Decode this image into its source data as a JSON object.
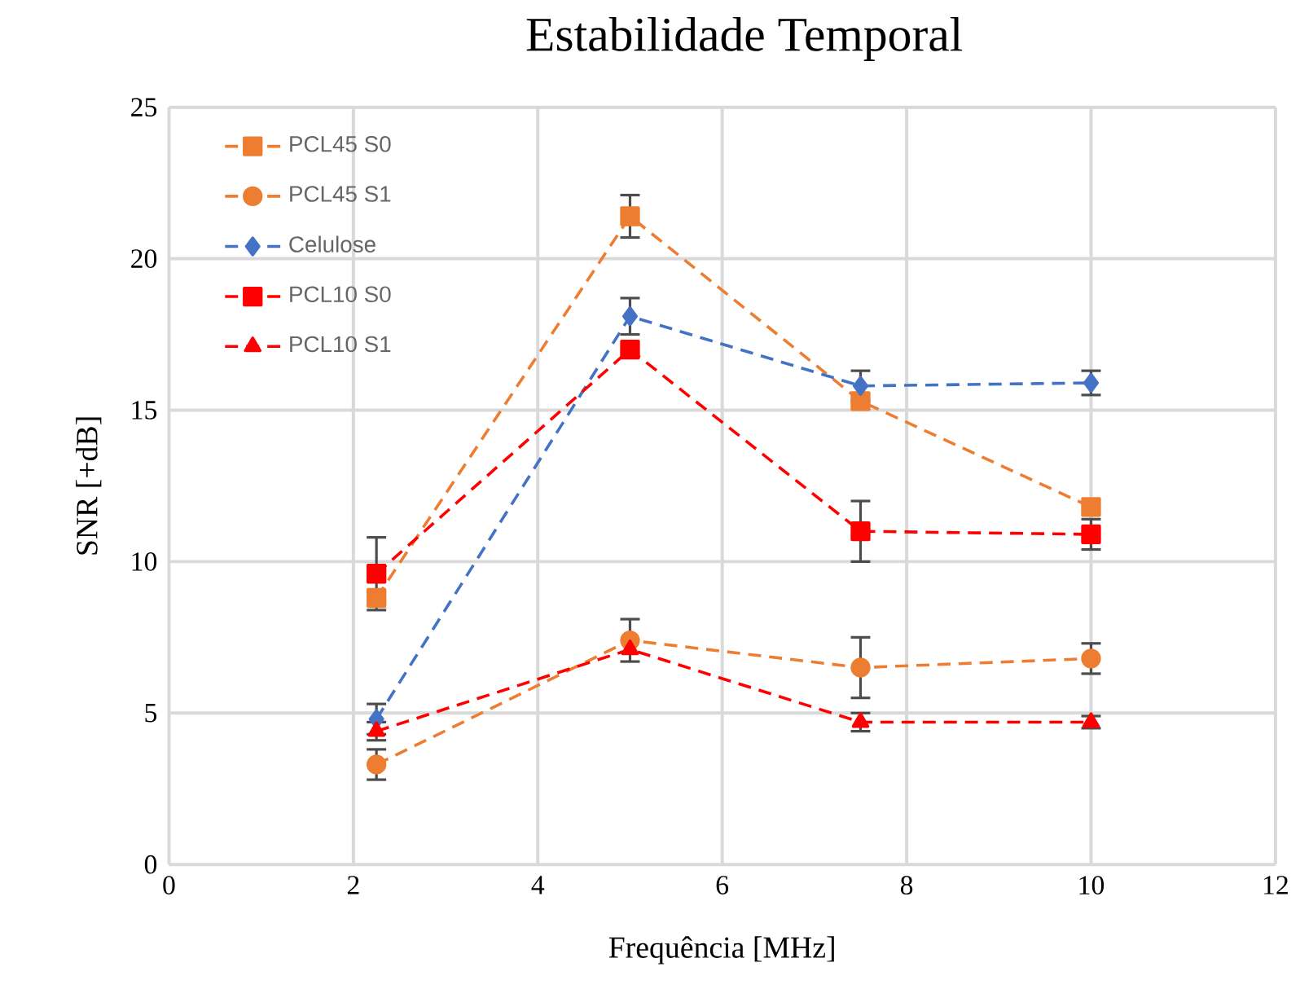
{
  "chart_data": {
    "type": "line",
    "title": "Estabilidade Temporal",
    "xlabel": "Frequência [MHz]",
    "ylabel": "SNR [+dB]",
    "x": [
      2.25,
      5,
      7.5,
      10
    ],
    "xlim": [
      0,
      12
    ],
    "xticks": [
      0,
      2,
      4,
      6,
      8,
      10,
      12
    ],
    "ylim": [
      0,
      25
    ],
    "yticks": [
      0,
      5,
      10,
      15,
      20,
      25
    ],
    "grid": true,
    "legend": "top left",
    "line_style": "dashed",
    "series": [
      {
        "name": "PCL45 S0",
        "color": "#ed7d31",
        "marker": "square",
        "values": [
          8.8,
          21.4,
          15.3,
          11.8
        ],
        "errors": [
          null,
          0.7,
          null,
          null
        ]
      },
      {
        "name": "PCL45 S1",
        "color": "#ed7d31",
        "marker": "circle",
        "values": [
          3.3,
          7.4,
          6.5,
          6.8
        ],
        "errors": [
          0.5,
          0.7,
          1.0,
          0.5
        ]
      },
      {
        "name": "Celulose",
        "color": "#4472c4",
        "marker": "diamond",
        "values": [
          4.8,
          18.1,
          15.8,
          15.9
        ],
        "errors": [
          0.5,
          0.6,
          0.5,
          0.4
        ]
      },
      {
        "name": "PCL10 S0",
        "color": "#ff0000",
        "marker": "square",
        "values": [
          9.6,
          17.0,
          11.0,
          10.9
        ],
        "errors": [
          1.2,
          null,
          1.0,
          0.5
        ]
      },
      {
        "name": "PCL10 S1",
        "color": "#ff0000",
        "marker": "triangle",
        "values": [
          4.4,
          7.1,
          4.7,
          4.7
        ],
        "errors": [
          0.3,
          null,
          0.3,
          0.2
        ]
      }
    ]
  }
}
